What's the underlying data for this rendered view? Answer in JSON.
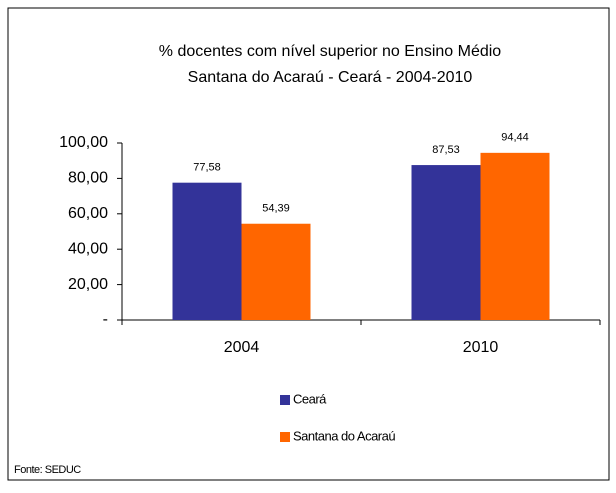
{
  "chart_data": {
    "type": "bar",
    "title": "% docentes com nível  superior no Ensino Médio",
    "subtitle": "Santana do Acaraú -   Ceará - 2004-2010",
    "categories": [
      "2004",
      "2010"
    ],
    "series": [
      {
        "name": "Ceará",
        "color": "#333399",
        "values": [
          77.58,
          87.53
        ],
        "value_labels": [
          "77,58",
          "87,53"
        ]
      },
      {
        "name": "Santana do Acaraú",
        "color": "#ff6600",
        "values": [
          54.39,
          94.44
        ],
        "value_labels": [
          "54,39",
          "94,44"
        ]
      }
    ],
    "ylim": [
      0,
      100
    ],
    "yticks": [
      {
        "value": 0,
        "label": "-"
      },
      {
        "value": 20,
        "label": "20,00"
      },
      {
        "value": 40,
        "label": "40,00"
      },
      {
        "value": 60,
        "label": "60,00"
      },
      {
        "value": 80,
        "label": "80,00"
      },
      {
        "value": 100,
        "label": "100,00"
      }
    ],
    "grid": false,
    "source": "Fonte: SEDUC"
  }
}
